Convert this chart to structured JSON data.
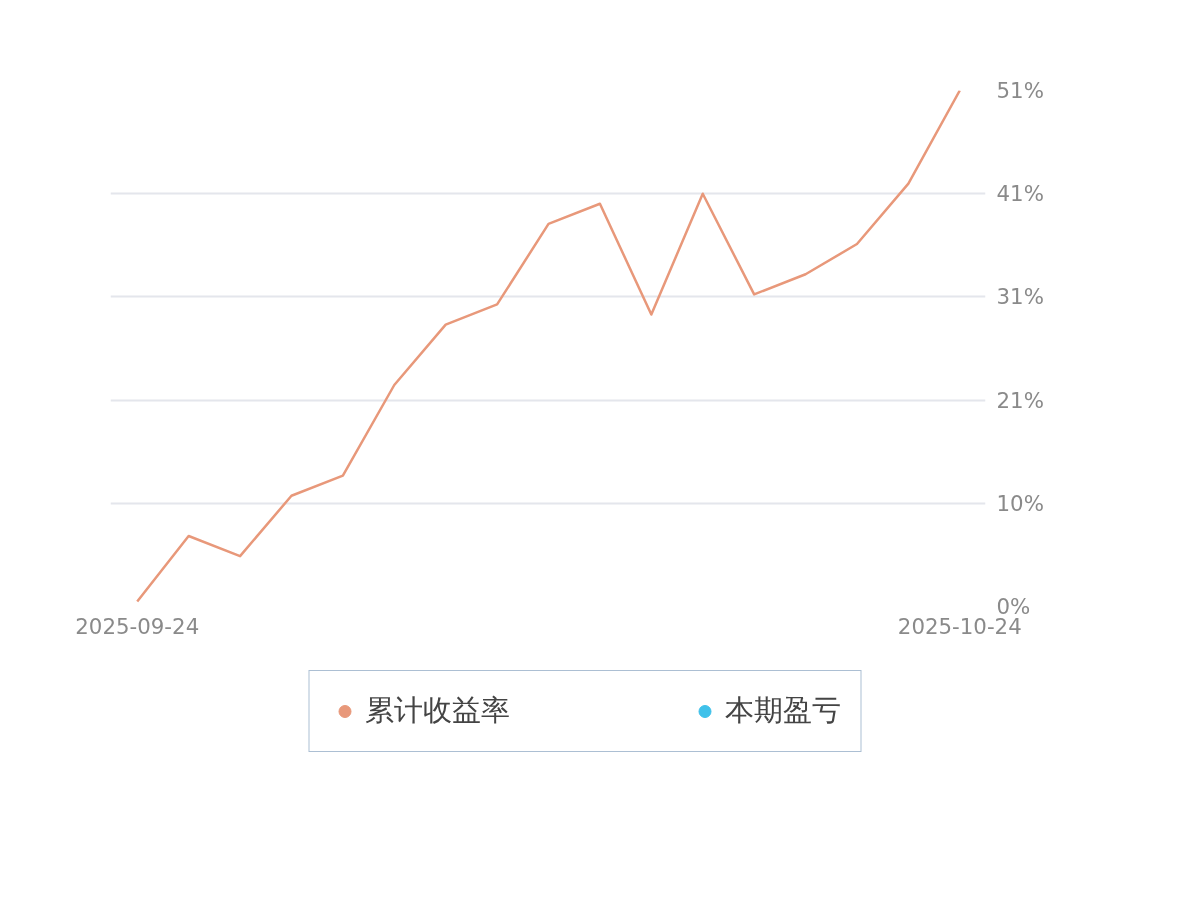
{
  "chart_data": {
    "type": "line",
    "categories": [
      "2025-09-24",
      null,
      null,
      null,
      null,
      null,
      null,
      null,
      null,
      null,
      null,
      null,
      null,
      null,
      null,
      null,
      "2025-10-24"
    ],
    "series": [
      {
        "name": "累计收益率",
        "color": "#e8987a",
        "values": [
          0.5,
          7,
          5,
          11,
          13,
          22,
          28,
          30,
          38,
          40,
          29,
          41,
          31,
          33,
          36,
          42,
          51.25
        ]
      },
      {
        "name": "本期盈亏",
        "color": "#3fc1ea",
        "values": [
          null,
          null,
          null,
          null,
          null,
          null,
          null,
          null,
          null,
          null,
          null,
          null,
          null,
          null,
          null,
          null,
          null
        ]
      }
    ],
    "ylim": [
      0,
      51.25
    ],
    "yticks": [
      {
        "value": 0,
        "label": "0%"
      },
      {
        "value": 10.25,
        "label": "10%"
      },
      {
        "value": 20.5,
        "label": "21%"
      },
      {
        "value": 30.75,
        "label": "31%"
      },
      {
        "value": 41,
        "label": "41%"
      },
      {
        "value": 51.25,
        "label": "51%"
      }
    ],
    "grid": "y",
    "legend": "bottom",
    "marker": "none",
    "line_style": "solid"
  }
}
